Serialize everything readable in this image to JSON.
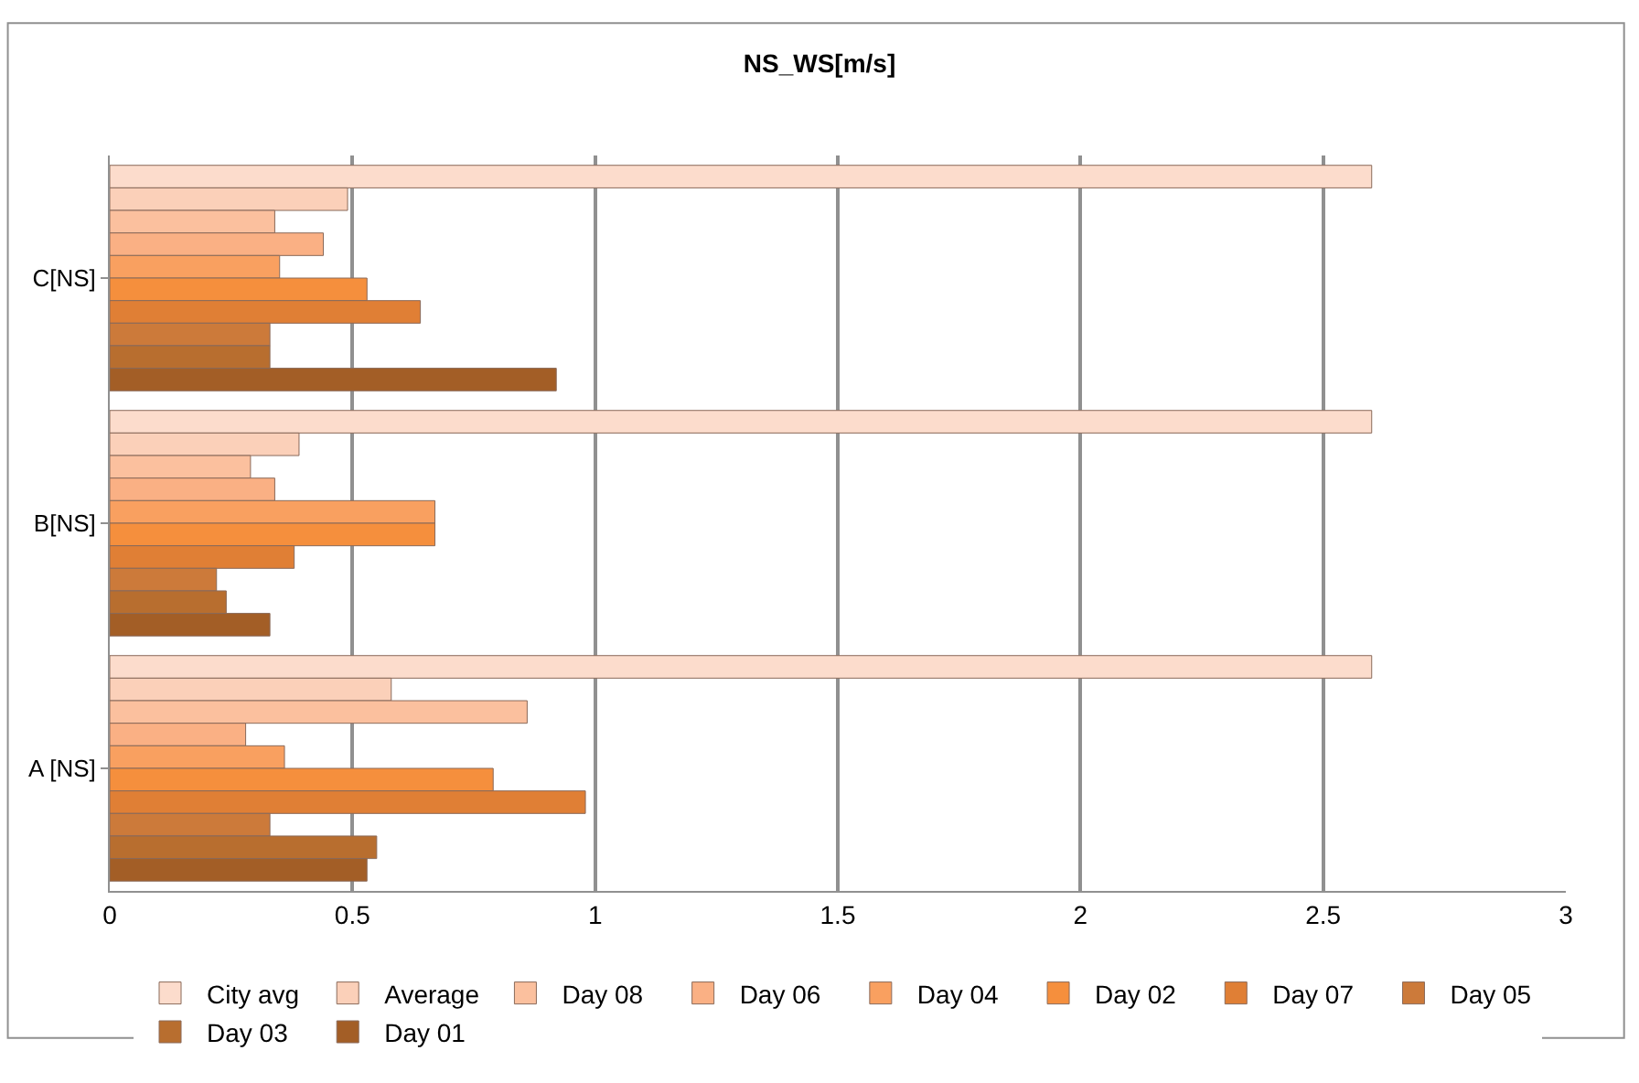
{
  "chart_data": {
    "type": "bar",
    "orientation": "horizontal",
    "title": "NS_WS[m/s]",
    "categories": [
      "C[NS]",
      "B[NS]",
      "A [NS]"
    ],
    "series": [
      {
        "name": "City avg",
        "color": "#fcdccc",
        "values": [
          2.6,
          2.6,
          2.6
        ]
      },
      {
        "name": "Average",
        "color": "#fbd0b9",
        "values": [
          0.49,
          0.39,
          0.58
        ]
      },
      {
        "name": "Day 08",
        "color": "#fbc09e",
        "values": [
          0.34,
          0.29,
          0.86
        ]
      },
      {
        "name": "Day 06",
        "color": "#fab084",
        "values": [
          0.44,
          0.34,
          0.28
        ]
      },
      {
        "name": "Day 04",
        "color": "#f9a060",
        "values": [
          0.35,
          0.67,
          0.36
        ]
      },
      {
        "name": "Day 02",
        "color": "#f58f3d",
        "values": [
          0.53,
          0.67,
          0.79
        ]
      },
      {
        "name": "Day 07",
        "color": "#e07f35",
        "values": [
          0.64,
          0.38,
          0.98
        ]
      },
      {
        "name": "Day 05",
        "color": "#cc7a3a",
        "values": [
          0.33,
          0.22,
          0.33
        ]
      },
      {
        "name": "Day 03",
        "color": "#b86e2f",
        "values": [
          0.33,
          0.24,
          0.55
        ]
      },
      {
        "name": "Day 01",
        "color": "#a35e26",
        "values": [
          0.92,
          0.33,
          0.53
        ]
      }
    ],
    "xlim": [
      0,
      3
    ],
    "xticks": [
      0,
      0.5,
      1,
      1.5,
      2,
      2.5,
      3
    ],
    "grid": "x",
    "legend": "bottom"
  }
}
